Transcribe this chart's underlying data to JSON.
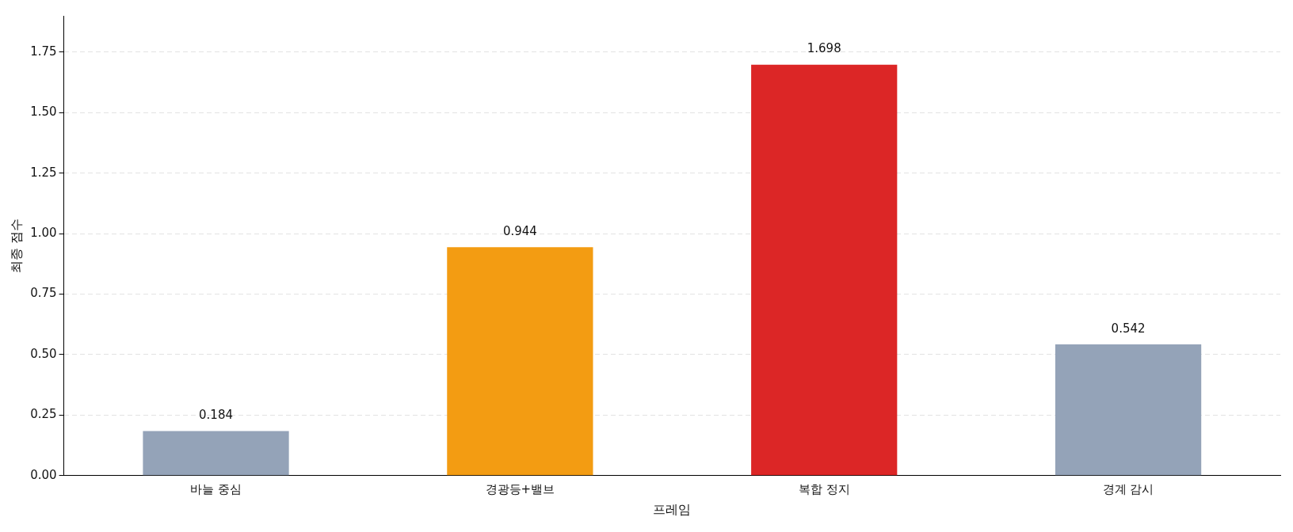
{
  "chart_data": {
    "type": "bar",
    "xlabel": "프레임",
    "ylabel": "최종 점수",
    "categories": [
      "바늘 중심",
      "경광등+밸브",
      "복합 정지",
      "경계 감시"
    ],
    "values": [
      0.184,
      0.944,
      1.698,
      0.542
    ],
    "colors": [
      "#94a3b8",
      "#f39c12",
      "#dc2626",
      "#94a3b8"
    ],
    "ylim": [
      0,
      1.9
    ],
    "yticks": [
      {
        "value": 0,
        "label": "0.00"
      },
      0.25,
      {
        "value": 0.5,
        "label": "0.50"
      },
      0.75,
      {
        "value": 1,
        "label": "1.00"
      },
      1.25,
      {
        "value": 1.5,
        "label": "1.50"
      },
      1.75
    ],
    "grid": "y",
    "data_labels": true,
    "legend": false
  }
}
